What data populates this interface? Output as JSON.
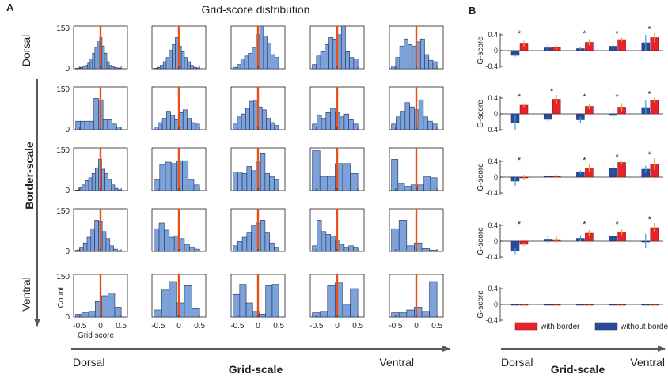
{
  "panel_a": {
    "label": "A",
    "title": "Grid-score distribution",
    "y_axis_group_label": "Border-scale",
    "y_axis_top_label": "Dorsal",
    "y_axis_bottom_label": "Ventral",
    "x_axis_group_label": "Grid-scale",
    "x_axis_left_label": "Dorsal",
    "x_axis_right_label": "Ventral",
    "ylabel": "Count",
    "xlabel": "Grid score"
  },
  "panel_b": {
    "label": "B",
    "ylabel": "G-score",
    "x_axis_group_label": "Grid-scale",
    "x_axis_left_label": "Dorsal",
    "x_axis_right_label": "Ventral",
    "legend_with": "with border",
    "legend_without": "without border",
    "significance_marker": "*"
  },
  "colors": {
    "hist_fill": "#7da2d9",
    "hist_edge": "#1f2f5a",
    "vline": "#e8501a",
    "with_border": "#e8222b",
    "without_border": "#2c4a9a",
    "err_with": "#f2a63a",
    "err_without": "#3aa0e0",
    "axis": "#231f20",
    "arrow": "#595959"
  },
  "chart_data": [
    {
      "type": "bar",
      "panel": "A",
      "description": "5x5 grid of grid-score histograms; rows = border-scale (Dorsal top to Ventral bottom), columns = grid-scale (Dorsal left to Ventral right)",
      "xlim": [
        -0.65,
        0.65
      ],
      "ylim": [
        0,
        150
      ],
      "yticks": [
        "0",
        "150"
      ],
      "xticks": [
        "-0.5",
        "0",
        "0.5"
      ],
      "vline_x": 0,
      "histograms": [
        {
          "row": 1,
          "col": 1,
          "edges": [
            -0.6,
            0.5
          ],
          "counts": [
            2,
            3,
            5,
            8,
            12,
            20,
            35,
            55,
            75,
            95,
            110,
            80,
            55,
            25,
            12,
            8,
            5,
            3,
            2
          ]
        },
        {
          "row": 1,
          "col": 2,
          "edges": [
            -0.6,
            0.5
          ],
          "counts": [
            2,
            5,
            12,
            25,
            40,
            65,
            85,
            110,
            80,
            60,
            40,
            25,
            12,
            5,
            3
          ]
        },
        {
          "row": 1,
          "col": 3,
          "edges": [
            -0.6,
            0.5
          ],
          "counts": [
            5,
            15,
            35,
            45,
            55,
            75,
            120,
            150,
            115,
            90,
            50,
            40
          ]
        },
        {
          "row": 1,
          "col": 4,
          "edges": [
            -0.6,
            0.5
          ],
          "counts": [
            15,
            45,
            60,
            85,
            110,
            105,
            120,
            150,
            60,
            40,
            35
          ]
        },
        {
          "row": 1,
          "col": 5,
          "edges": [
            -0.6,
            0.5
          ],
          "counts": [
            10,
            40,
            80,
            105,
            85,
            80,
            95,
            105,
            50,
            30,
            25
          ]
        },
        {
          "row": 2,
          "col": 1,
          "edges": [
            -0.6,
            0.5
          ],
          "counts": [
            30,
            30,
            30,
            30,
            110,
            105,
            35,
            35,
            20,
            10
          ]
        },
        {
          "row": 2,
          "col": 2,
          "edges": [
            -0.6,
            0.5
          ],
          "counts": [
            10,
            25,
            40,
            65,
            50,
            35,
            60,
            70,
            40,
            25,
            20
          ]
        },
        {
          "row": 2,
          "col": 3,
          "edges": [
            -0.6,
            0.5
          ],
          "counts": [
            20,
            45,
            55,
            75,
            100,
            105,
            80,
            70,
            40,
            25,
            15
          ]
        },
        {
          "row": 2,
          "col": 4,
          "edges": [
            -0.6,
            0.5
          ],
          "counts": [
            20,
            50,
            40,
            60,
            75,
            60,
            45,
            55,
            35,
            20
          ]
        },
        {
          "row": 2,
          "col": 5,
          "edges": [
            -0.6,
            0.5
          ],
          "counts": [
            20,
            45,
            65,
            95,
            80,
            70,
            105,
            45,
            30,
            20
          ]
        },
        {
          "row": 3,
          "col": 1,
          "edges": [
            -0.6,
            0.5
          ],
          "counts": [
            2,
            10,
            20,
            35,
            45,
            60,
            80,
            110,
            75,
            60,
            40,
            20,
            8,
            3
          ]
        },
        {
          "row": 3,
          "col": 2,
          "edges": [
            -0.6,
            0.5
          ],
          "counts": [
            40,
            90,
            100,
            95,
            105,
            105,
            40,
            20
          ]
        },
        {
          "row": 3,
          "col": 3,
          "edges": [
            -0.6,
            0.5
          ],
          "counts": [
            65,
            65,
            60,
            85,
            70,
            100,
            130,
            60,
            50,
            40
          ]
        },
        {
          "row": 3,
          "col": 4,
          "edges": [
            -0.6,
            0.5
          ],
          "counts": [
            140,
            50,
            50,
            95,
            95,
            60
          ]
        },
        {
          "row": 3,
          "col": 5,
          "edges": [
            -0.6,
            0.5
          ],
          "counts": [
            110,
            25,
            15,
            20,
            20,
            50,
            45
          ]
        },
        {
          "row": 4,
          "col": 1,
          "edges": [
            -0.6,
            0.5
          ],
          "counts": [
            5,
            15,
            30,
            50,
            80,
            110,
            105,
            70,
            45,
            20,
            8,
            3
          ]
        },
        {
          "row": 4,
          "col": 2,
          "edges": [
            -0.6,
            0.5
          ],
          "counts": [
            80,
            100,
            75,
            50,
            55,
            45,
            25,
            15,
            8
          ]
        },
        {
          "row": 4,
          "col": 3,
          "edges": [
            -0.6,
            0.5
          ],
          "counts": [
            20,
            35,
            50,
            65,
            90,
            100,
            110,
            65,
            30,
            15
          ]
        },
        {
          "row": 4,
          "col": 4,
          "edges": [
            -0.6,
            0.5
          ],
          "counts": [
            20,
            110,
            70,
            60,
            55,
            40,
            25,
            15,
            20,
            15
          ]
        },
        {
          "row": 4,
          "col": 5,
          "edges": [
            -0.6,
            0.5
          ],
          "counts": [
            80,
            110,
            20,
            30,
            10,
            5
          ]
        },
        {
          "row": 5,
          "col": 1,
          "edges": [
            -0.6,
            0.5
          ],
          "counts": [
            10,
            15,
            20,
            55,
            75,
            85,
            35
          ]
        },
        {
          "row": 5,
          "col": 2,
          "edges": [
            -0.6,
            0.5
          ],
          "counts": [
            25,
            95,
            125,
            50,
            110,
            30
          ]
        },
        {
          "row": 5,
          "col": 3,
          "edges": [
            -0.6,
            0.5
          ],
          "counts": [
            80,
            115,
            50,
            20,
            10,
            110,
            115
          ]
        },
        {
          "row": 5,
          "col": 4,
          "edges": [
            -0.6,
            0.5
          ],
          "counts": [
            15,
            20,
            110,
            120,
            45,
            100
          ]
        },
        {
          "row": 5,
          "col": 5,
          "edges": [
            -0.6,
            0.5
          ],
          "counts": [
            15,
            15,
            25,
            35,
            20,
            125
          ]
        }
      ]
    },
    {
      "type": "bar",
      "panel": "B",
      "description": "Mean G-score per grid-scale column, with vs without border, one chart per border-scale row",
      "categories": [
        "1",
        "2",
        "3",
        "4",
        "5"
      ],
      "ylim": [
        -0.4,
        0.4
      ],
      "yticks": [
        "-0.4",
        "0",
        "0.4"
      ],
      "series_names": [
        "without border",
        "with border"
      ],
      "rows": [
        {
          "row": 1,
          "without": {
            "values": [
              -0.12,
              0.07,
              0.05,
              0.11,
              0.2
            ],
            "err": [
              0.03,
              0.08,
              0.04,
              0.1,
              0.2
            ]
          },
          "with": {
            "values": [
              0.17,
              0.08,
              0.21,
              0.28,
              0.33
            ],
            "err": [
              0.08,
              0.06,
              0.08,
              0.05,
              0.12
            ]
          },
          "sig": [
            true,
            false,
            true,
            true,
            true
          ]
        },
        {
          "row": 2,
          "without": {
            "values": [
              -0.22,
              -0.14,
              -0.15,
              -0.04,
              0.16
            ],
            "err": [
              0.18,
              0.05,
              0.07,
              0.15,
              0.18
            ]
          },
          "with": {
            "values": [
              0.22,
              0.37,
              0.19,
              0.17,
              0.35
            ],
            "err": [
              0.05,
              0.11,
              0.07,
              0.1,
              0.06
            ]
          },
          "sig": [
            true,
            true,
            true,
            true,
            true
          ]
        },
        {
          "row": 3,
          "without": {
            "values": [
              -0.1,
              0.02,
              0.12,
              0.22,
              0.2
            ],
            "err": [
              0.12,
              0.03,
              0.05,
              0.15,
              0.09
            ]
          },
          "with": {
            "values": [
              0.0,
              0.02,
              0.23,
              0.37,
              0.33
            ],
            "err": [
              0.06,
              0.04,
              0.09,
              0.05,
              0.15
            ]
          },
          "sig": [
            true,
            false,
            true,
            true,
            true
          ]
        },
        {
          "row": 4,
          "without": {
            "values": [
              -0.25,
              0.05,
              0.07,
              0.12,
              0.0
            ],
            "err": [
              0.08,
              0.1,
              0.08,
              0.08,
              0.18
            ]
          },
          "with": {
            "values": [
              -0.08,
              0.04,
              0.2,
              0.23,
              0.34
            ],
            "err": [
              0.04,
              0.08,
              0.08,
              0.08,
              0.12
            ]
          },
          "sig": [
            true,
            false,
            true,
            true,
            true
          ]
        },
        {
          "row": 5,
          "without": {
            "values": [
              0.0,
              0.0,
              0.0,
              0.0,
              0.0
            ],
            "err": [
              0.01,
              0.01,
              0.01,
              0.01,
              0.01
            ]
          },
          "with": {
            "values": [
              0.0,
              0.0,
              0.0,
              0.0,
              0.0
            ],
            "err": [
              0.01,
              0.01,
              0.01,
              0.01,
              0.01
            ]
          },
          "sig": [
            false,
            false,
            false,
            false,
            false
          ]
        }
      ]
    }
  ]
}
